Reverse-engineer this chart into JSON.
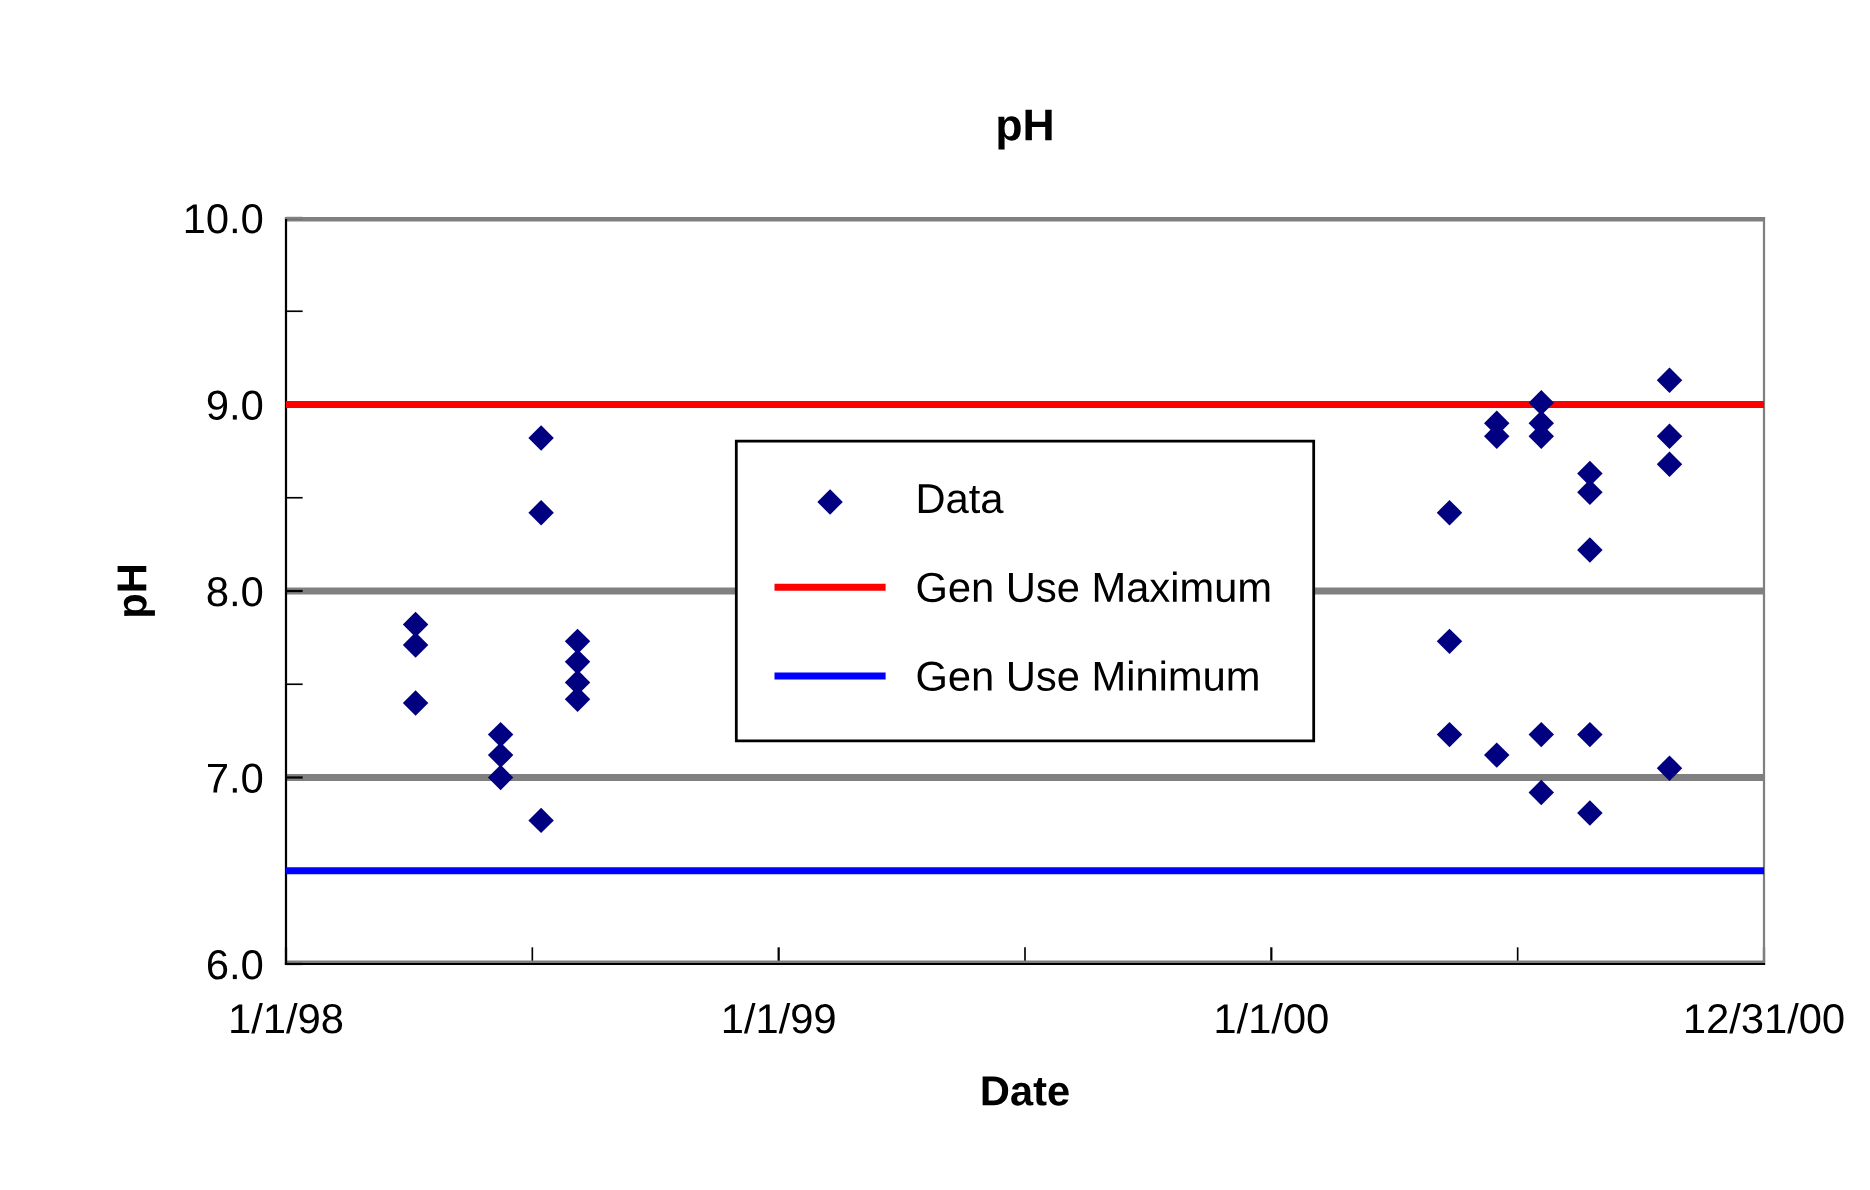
{
  "chart_data": {
    "type": "scatter",
    "title": "pH",
    "xlabel": "Date",
    "ylabel": "pH",
    "series": [
      {
        "name": "Data",
        "color": "#000080",
        "marker": "diamond",
        "x": [
          "1998-04-07",
          "1998-04-07",
          "1998-04-07",
          "1998-06-09",
          "1998-06-09",
          "1998-06-09",
          "1998-07-09",
          "1998-07-09",
          "1998-07-09",
          "1998-08-05",
          "1998-08-05",
          "1998-08-05",
          "1998-08-05",
          "2000-05-12",
          "2000-05-12",
          "2000-05-12",
          "2000-06-16",
          "2000-06-16",
          "2000-06-16",
          "2000-07-19",
          "2000-07-19",
          "2000-07-19",
          "2000-07-19",
          "2000-07-19",
          "2000-08-24",
          "2000-08-24",
          "2000-08-24",
          "2000-08-24",
          "2000-08-24",
          "2000-10-22",
          "2000-10-22",
          "2000-10-22",
          "2000-10-22"
        ],
        "values": [
          7.82,
          7.71,
          7.4,
          7.23,
          7.12,
          7.0,
          8.82,
          8.42,
          6.77,
          7.73,
          7.62,
          7.51,
          7.42,
          8.42,
          7.73,
          7.23,
          8.9,
          8.83,
          7.12,
          9.01,
          8.9,
          8.83,
          7.23,
          6.92,
          8.63,
          8.53,
          8.22,
          7.23,
          6.81,
          9.13,
          8.83,
          8.68,
          7.05
        ]
      }
    ],
    "ref_lines": [
      {
        "axis": "y",
        "value": 9.0,
        "label": "Gen Use Maximum",
        "color": "#ff0000",
        "line_style": "solid"
      },
      {
        "axis": "y",
        "value": 6.5,
        "label": "Gen Use Minimum",
        "color": "#0000ff",
        "line_style": "solid"
      }
    ],
    "xlim": [
      "1998-01-01",
      "2000-12-31"
    ],
    "xticks": [
      {
        "value": "1998-01-01",
        "label": "1/1/98"
      },
      {
        "value": "1998-07-02T12:00",
        "label": null
      },
      {
        "value": "1999-01-01",
        "label": "1/1/99"
      },
      {
        "value": "1999-07-02T12:00",
        "label": null
      },
      {
        "value": "2000-01-01",
        "label": "1/1/00"
      },
      {
        "value": "2000-07-01T12:00",
        "label": null
      },
      {
        "value": "2000-12-31",
        "label": "12/31/00"
      }
    ],
    "ylim": [
      6.0,
      10.0
    ],
    "yticks": [
      {
        "value": 6.0,
        "label": "6.0"
      },
      {
        "value": 6.5,
        "label": null
      },
      {
        "value": 7.0,
        "label": "7.0"
      },
      {
        "value": 7.5,
        "label": null
      },
      {
        "value": 8.0,
        "label": "8.0"
      },
      {
        "value": 8.5,
        "label": null
      },
      {
        "value": 9.0,
        "label": "9.0"
      },
      {
        "value": 9.5,
        "label": null
      },
      {
        "value": 10.0,
        "label": "10.0"
      }
    ],
    "grid": "y",
    "legend": "center"
  }
}
